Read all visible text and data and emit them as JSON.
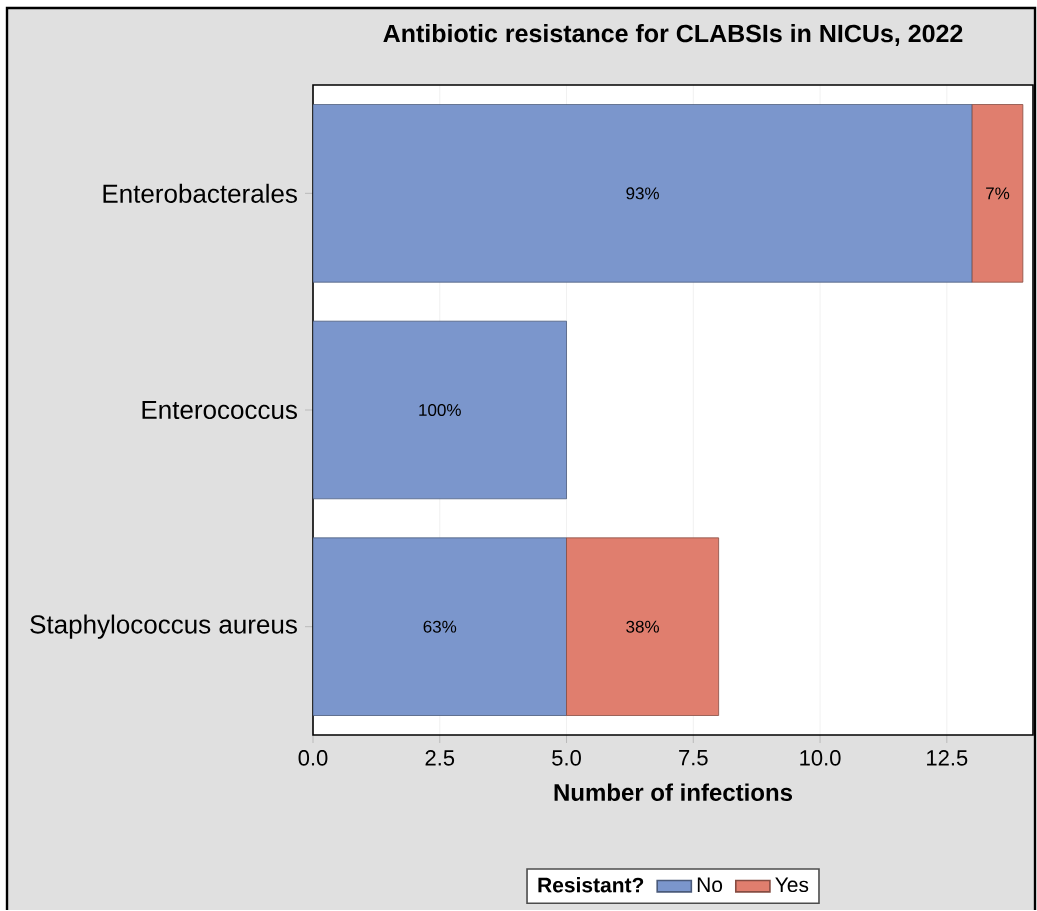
{
  "chart_data": {
    "type": "bar",
    "orientation": "horizontal",
    "stacked": true,
    "title": "Antibiotic resistance for CLABSIs in NICUs, 2022",
    "xlabel": "Number of infections",
    "legend_title": "Resistant?",
    "categories": [
      "Enterobacterales",
      "Enterococcus",
      "Staphylococcus aureus"
    ],
    "series": [
      {
        "name": "No",
        "color": "#7b96cc",
        "values": [
          13,
          5,
          5
        ]
      },
      {
        "name": "Yes",
        "color": "#e07e6e",
        "values": [
          1,
          null,
          3
        ]
      }
    ],
    "annotations": [
      "93%",
      "100%",
      "63%",
      "7%",
      "38%"
    ],
    "xlim": [
      0,
      14.2
    ],
    "xticks": [
      {
        "value": 0,
        "label": "0.0"
      },
      {
        "value": 2.5,
        "label": "2.5"
      },
      {
        "value": 5,
        "label": "5.0"
      },
      {
        "value": 7.5,
        "label": "7.5"
      },
      {
        "value": 10,
        "label": "10.0"
      },
      {
        "value": 12.5,
        "label": "12.5"
      }
    ],
    "grid": "x",
    "legend": "bottom"
  }
}
